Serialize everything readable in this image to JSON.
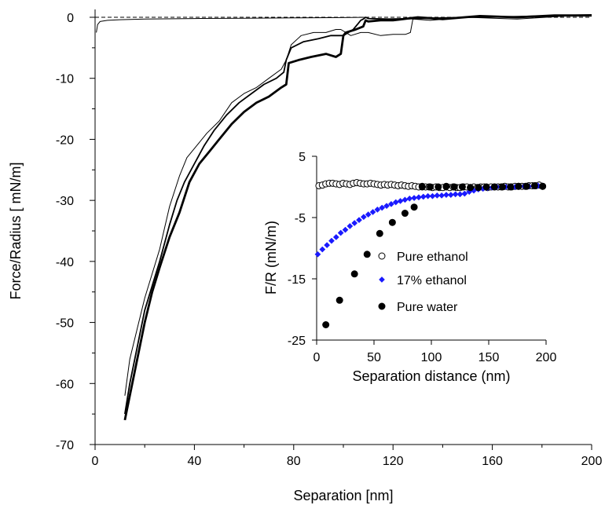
{
  "chart_data": [
    {
      "type": "line",
      "title": "",
      "xlabel": "Separation [nm]",
      "ylabel": "Force/Radius [ mN/m]",
      "xlim": [
        0,
        200
      ],
      "ylim": [
        -70,
        0
      ],
      "xticks": [
        0,
        40,
        80,
        120,
        160,
        200
      ],
      "yticks": [
        0,
        -10,
        -20,
        -30,
        -40,
        -50,
        -60,
        -70
      ],
      "grid": false,
      "legend": "none",
      "baseline": {
        "y": 0,
        "style": "dashed"
      },
      "series": [
        {
          "weight": "thin",
          "x": [
            0.5,
            1,
            2,
            5,
            10,
            20,
            40,
            60,
            80,
            100,
            110
          ],
          "y": [
            -2.5,
            -1.2,
            -0.7,
            -0.5,
            -0.4,
            -0.3,
            -0.2,
            -0.15,
            -0.1,
            -0.05,
            0
          ]
        },
        {
          "weight": "thin",
          "x": [
            12,
            14,
            17,
            20,
            23,
            26,
            30,
            34,
            37,
            41,
            45,
            50,
            55,
            60,
            65,
            70,
            75,
            77,
            79,
            83,
            88,
            93,
            97,
            99,
            103,
            107,
            110,
            115,
            120,
            125,
            127,
            128,
            135,
            150,
            170,
            190,
            200
          ],
          "y": [
            -62,
            -56,
            -51,
            -46,
            -42,
            -38,
            -31,
            -26,
            -23,
            -21,
            -19,
            -17,
            -14,
            -12.5,
            -11.5,
            -10,
            -8.5,
            -7,
            -4.5,
            -3,
            -2.5,
            -2.5,
            -2,
            -2,
            -3,
            -2.5,
            -2.5,
            -3,
            -2.8,
            -2.8,
            -2.5,
            -0.3,
            -0.5,
            0,
            -0.3,
            0.2,
            0.2
          ]
        },
        {
          "weight": "medium",
          "x": [
            12,
            14,
            17,
            20,
            23,
            26,
            30,
            33,
            36,
            40,
            44,
            48,
            53,
            58,
            63,
            68,
            73,
            76,
            77,
            79,
            84,
            90,
            95,
            100,
            104,
            106,
            107,
            108,
            109,
            110,
            118,
            130,
            150,
            170,
            190,
            200
          ],
          "y": [
            -65,
            -60,
            -54,
            -48,
            -44,
            -40,
            -34,
            -30,
            -27,
            -24,
            -21,
            -18.5,
            -16,
            -14,
            -12.5,
            -11,
            -10,
            -9,
            -7,
            -5,
            -4,
            -3.5,
            -3,
            -3,
            -2,
            -1,
            -0.5,
            -0.3,
            0,
            -0.2,
            -0.3,
            -0.2,
            0,
            0.1,
            0.3,
            0.4
          ]
        },
        {
          "weight": "thick",
          "x": [
            12,
            14,
            17,
            20,
            23,
            26,
            30,
            34,
            38,
            42,
            46,
            50,
            55,
            60,
            65,
            70,
            75,
            77,
            78,
            82,
            87,
            93,
            97,
            99,
            100,
            101,
            105,
            108,
            109,
            110,
            115,
            120,
            130,
            140,
            155,
            170,
            185,
            200
          ],
          "y": [
            -66,
            -62,
            -56,
            -50,
            -45,
            -41,
            -36,
            -32,
            -27,
            -24,
            -22,
            -20,
            -17.5,
            -15.5,
            -14,
            -13,
            -11.5,
            -11,
            -7.5,
            -7,
            -6.5,
            -6,
            -6.5,
            -6,
            -3,
            -2.5,
            -2,
            -1.5,
            -0.5,
            -0.7,
            -0.5,
            -0.5,
            0,
            -0.3,
            0.2,
            0,
            0.3,
            0.3
          ]
        }
      ]
    },
    {
      "type": "scatter",
      "title": "",
      "xlabel": "Separation distance (nm)",
      "ylabel": "F/R (mN/m)",
      "xlim": [
        0,
        200
      ],
      "ylim": [
        -25,
        5
      ],
      "xticks": [
        0,
        50,
        100,
        150,
        200
      ],
      "yticks": [
        5,
        -5,
        -15,
        -25
      ],
      "grid": false,
      "legend": "center-right",
      "series": [
        {
          "name": "Pure ethanol",
          "marker": "open-circle",
          "color": "#000000",
          "x": [
            2,
            5,
            8,
            11,
            14,
            17,
            20,
            23,
            26,
            29,
            32,
            35,
            38,
            41,
            44,
            47,
            50,
            53,
            56,
            59,
            62,
            65,
            68,
            71,
            74,
            77,
            80,
            83,
            86,
            89,
            92,
            95,
            98,
            101,
            104,
            107,
            110,
            113,
            116,
            119,
            122,
            125,
            128,
            131,
            134,
            137,
            140,
            143,
            146,
            149,
            152,
            155,
            158,
            161,
            164,
            167,
            170,
            173,
            176,
            179,
            182,
            185,
            188,
            191,
            194,
            197
          ],
          "y": [
            0.2,
            0.3,
            0.5,
            0.6,
            0.6,
            0.5,
            0.4,
            0.6,
            0.5,
            0.4,
            0.6,
            0.7,
            0.6,
            0.5,
            0.5,
            0.6,
            0.5,
            0.4,
            0.3,
            0.4,
            0.3,
            0.4,
            0.3,
            0.2,
            0.3,
            0.2,
            0.1,
            0.2,
            0.1,
            0.0,
            0.1,
            0.0,
            0.0,
            -0.1,
            0.0,
            -0.1,
            -0.1,
            0.0,
            -0.1,
            0.0,
            -0.1,
            -0.1,
            0.0,
            0.0,
            -0.1,
            0.0,
            -0.1,
            0.0,
            0.0,
            -0.1,
            0.0,
            0.0,
            0.0,
            0.0,
            0.1,
            0.0,
            0.0,
            0.1,
            0.1,
            0.1,
            0.1,
            0.2,
            0.2,
            0.2,
            0.3,
            0.1
          ]
        },
        {
          "name": "17% ethanol",
          "marker": "diamond",
          "color": "#1a1aff",
          "x": [
            1,
            5,
            9,
            13,
            17,
            21,
            25,
            29,
            33,
            37,
            41,
            45,
            49,
            53,
            57,
            61,
            65,
            69,
            73,
            77,
            81,
            85,
            89,
            93,
            97,
            101,
            105,
            109,
            113,
            117,
            121,
            125,
            129,
            133,
            137,
            141,
            145,
            149,
            153,
            157,
            161,
            165,
            169,
            173,
            177,
            181,
            185,
            189,
            193,
            197
          ],
          "y": [
            -11,
            -10.2,
            -9.5,
            -8.8,
            -8.2,
            -7.5,
            -7,
            -6.4,
            -5.9,
            -5.4,
            -4.9,
            -4.5,
            -4.1,
            -3.7,
            -3.4,
            -3.1,
            -2.8,
            -2.5,
            -2.3,
            -2.1,
            -1.9,
            -1.8,
            -1.7,
            -1.6,
            -1.5,
            -1.5,
            -1.4,
            -1.4,
            -1.3,
            -1.3,
            -1.2,
            -1.2,
            -1.1,
            -0.8,
            -0.6,
            -0.4,
            -0.3,
            -0.2,
            -0.1,
            0,
            0,
            0,
            0,
            0,
            0.1,
            0.1,
            0.1,
            0.1,
            0.2,
            0.2
          ]
        },
        {
          "name": "Pure water",
          "marker": "filled-circle",
          "color": "#000000",
          "x": [
            8,
            20,
            33,
            44,
            55,
            66,
            77,
            85,
            92,
            99,
            106,
            113,
            120,
            127,
            134,
            141,
            148,
            155,
            162,
            169,
            176,
            183,
            190,
            197
          ],
          "y": [
            -22.5,
            -18.5,
            -14.2,
            -11,
            -7.6,
            -5.8,
            -4.3,
            -3.3,
            0.0,
            0.0,
            0.0,
            0.1,
            0.0,
            0.0,
            -0.1,
            -0.1,
            0.0,
            0.0,
            0.0,
            0.0,
            0.1,
            0.1,
            0.2,
            0.1
          ]
        }
      ]
    }
  ]
}
